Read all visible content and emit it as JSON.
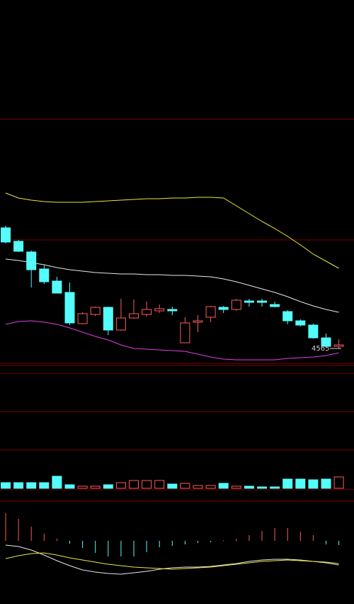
{
  "chart_data": [
    {
      "type": "candlestick",
      "ylim": [
        4523,
        5547
      ],
      "up_color": "#ff5a5a",
      "down_color": "#54fcfc",
      "open": [
        4905,
        4867,
        4837,
        4789,
        4755,
        4723,
        4635,
        4661,
        4681,
        4617,
        4651,
        4661,
        4671,
        4675,
        4581,
        4639,
        4653,
        4681,
        4675,
        4699,
        4699,
        4689,
        4669,
        4643,
        4631,
        4595,
        4571
      ],
      "close": [
        4865,
        4839,
        4787,
        4753,
        4721,
        4637,
        4663,
        4681,
        4617,
        4651,
        4663,
        4675,
        4677,
        4671,
        4637,
        4643,
        4683,
        4675,
        4701,
        4695,
        4695,
        4683,
        4643,
        4631,
        4595,
        4571,
        4575
      ],
      "high": [
        4911,
        4871,
        4841,
        4801,
        4767,
        4751,
        4667,
        4683,
        4683,
        4705,
        4703,
        4697,
        4689,
        4683,
        4653,
        4659,
        4685,
        4685,
        4705,
        4705,
        4705,
        4697,
        4673,
        4647,
        4635,
        4607,
        4591
      ],
      "low": [
        4861,
        4837,
        4737,
        4747,
        4721,
        4631,
        4633,
        4657,
        4603,
        4615,
        4649,
        4655,
        4665,
        4659,
        4581,
        4611,
        4639,
        4665,
        4671,
        4683,
        4683,
        4681,
        4633,
        4627,
        4593,
        4567,
        4565
      ],
      "series": [
        {
          "color": "#e8e840",
          "values": [
            5003,
            4989,
            4983,
            4979,
            4977,
            4977,
            4977,
            4979,
            4981,
            4983,
            4985,
            4987,
            4987,
            4989,
            4989,
            4991,
            4991,
            4989,
            4967,
            4945,
            4923,
            4903,
            4881,
            4857,
            4831,
            4811,
            4791
          ]
        },
        {
          "color": "#e8e8e8",
          "values": [
            4817,
            4813,
            4807,
            4801,
            4793,
            4787,
            4783,
            4779,
            4777,
            4775,
            4775,
            4773,
            4773,
            4771,
            4771,
            4769,
            4767,
            4761,
            4753,
            4743,
            4733,
            4723,
            4711,
            4697,
            4685,
            4675,
            4667
          ]
        },
        {
          "color": "#e040e0",
          "values": [
            4633,
            4641,
            4643,
            4639,
            4633,
            4623,
            4611,
            4599,
            4589,
            4575,
            4565,
            4563,
            4561,
            4559,
            4557,
            4549,
            4541,
            4535,
            4533,
            4533,
            4533,
            4533,
            4537,
            4539,
            4541,
            4545,
            4553
          ]
        }
      ],
      "low_marker": {
        "value": 4565,
        "label": "4565"
      }
    },
    {
      "type": "bar",
      "ylim": [
        0,
        60
      ],
      "values": [
        8,
        8,
        8,
        8,
        17,
        5,
        3,
        3,
        5,
        8,
        11,
        11,
        11,
        6,
        7,
        4,
        4,
        7,
        3,
        3,
        2,
        2,
        13,
        13,
        12,
        13,
        16
      ]
    },
    {
      "type": "macd",
      "ylim": [
        -89,
        54
      ],
      "values": [
        39,
        31,
        20,
        10,
        3,
        -4,
        -10,
        -17,
        -22,
        -22,
        -22,
        -16,
        -9,
        -7,
        -5,
        -3,
        -2,
        1,
        3,
        8,
        14,
        18,
        18,
        13,
        8,
        -5,
        -6
      ],
      "series": [
        {
          "color": "#e8e8e8",
          "values": [
            -6,
            -8,
            -13,
            -20,
            -28,
            -35,
            -41,
            -44,
            -46,
            -47,
            -45,
            -43,
            -40,
            -38,
            -37,
            -37,
            -36,
            -34,
            -32,
            -29,
            -27,
            -26,
            -26,
            -27,
            -29,
            -31,
            -34
          ]
        },
        {
          "color": "#e8e840",
          "values": [
            -25,
            -21,
            -18,
            -17,
            -20,
            -24,
            -27,
            -30,
            -33,
            -35,
            -37,
            -38,
            -39,
            -40,
            -39,
            -38,
            -37,
            -35,
            -33,
            -31,
            -29,
            -28,
            -27,
            -28,
            -29,
            -30,
            -32
          ]
        }
      ]
    }
  ]
}
